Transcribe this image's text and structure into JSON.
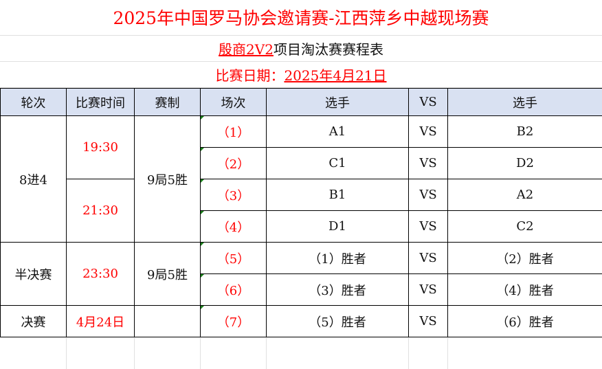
{
  "title": "2025年中国罗马协会邀请赛-江西萍乡中越现场赛",
  "subtitle": {
    "event": "殷商2V2",
    "suffix": "项目淘汰赛赛程表"
  },
  "date": {
    "label": "比赛日期：",
    "value": "2025年4月21日"
  },
  "headers": [
    "轮次",
    "比赛时间",
    "赛制",
    "场次",
    "选手",
    "VS",
    "选手"
  ],
  "groups": [
    {
      "round": "8进4",
      "times": [
        "19:30",
        "21:30"
      ],
      "format": "9局5胜"
    },
    {
      "round": "半决赛",
      "times": [
        "23:30"
      ],
      "format": "9局5胜"
    },
    {
      "round": "决赛",
      "times": [
        "4月24日"
      ],
      "format": ""
    }
  ],
  "matches": [
    {
      "no": "（1）",
      "p1": "A1",
      "vs": "VS",
      "p2": "B2"
    },
    {
      "no": "（2）",
      "p1": "C1",
      "vs": "VS",
      "p2": "D2"
    },
    {
      "no": "（3）",
      "p1": "B1",
      "vs": "VS",
      "p2": "A2"
    },
    {
      "no": "（4）",
      "p1": "D1",
      "vs": "VS",
      "p2": "C2"
    },
    {
      "no": "（5）",
      "p1": "（1）胜者",
      "vs": "VS",
      "p2": "（2）胜者"
    },
    {
      "no": "（6）",
      "p1": "（3）胜者",
      "vs": "VS",
      "p2": "（4）胜者"
    },
    {
      "no": "（7）",
      "p1": "（5）胜者",
      "vs": "VS",
      "p2": "（6）胜者"
    }
  ],
  "colors": {
    "accent": "#ff0000",
    "header_bg": "#d9e1f2"
  }
}
